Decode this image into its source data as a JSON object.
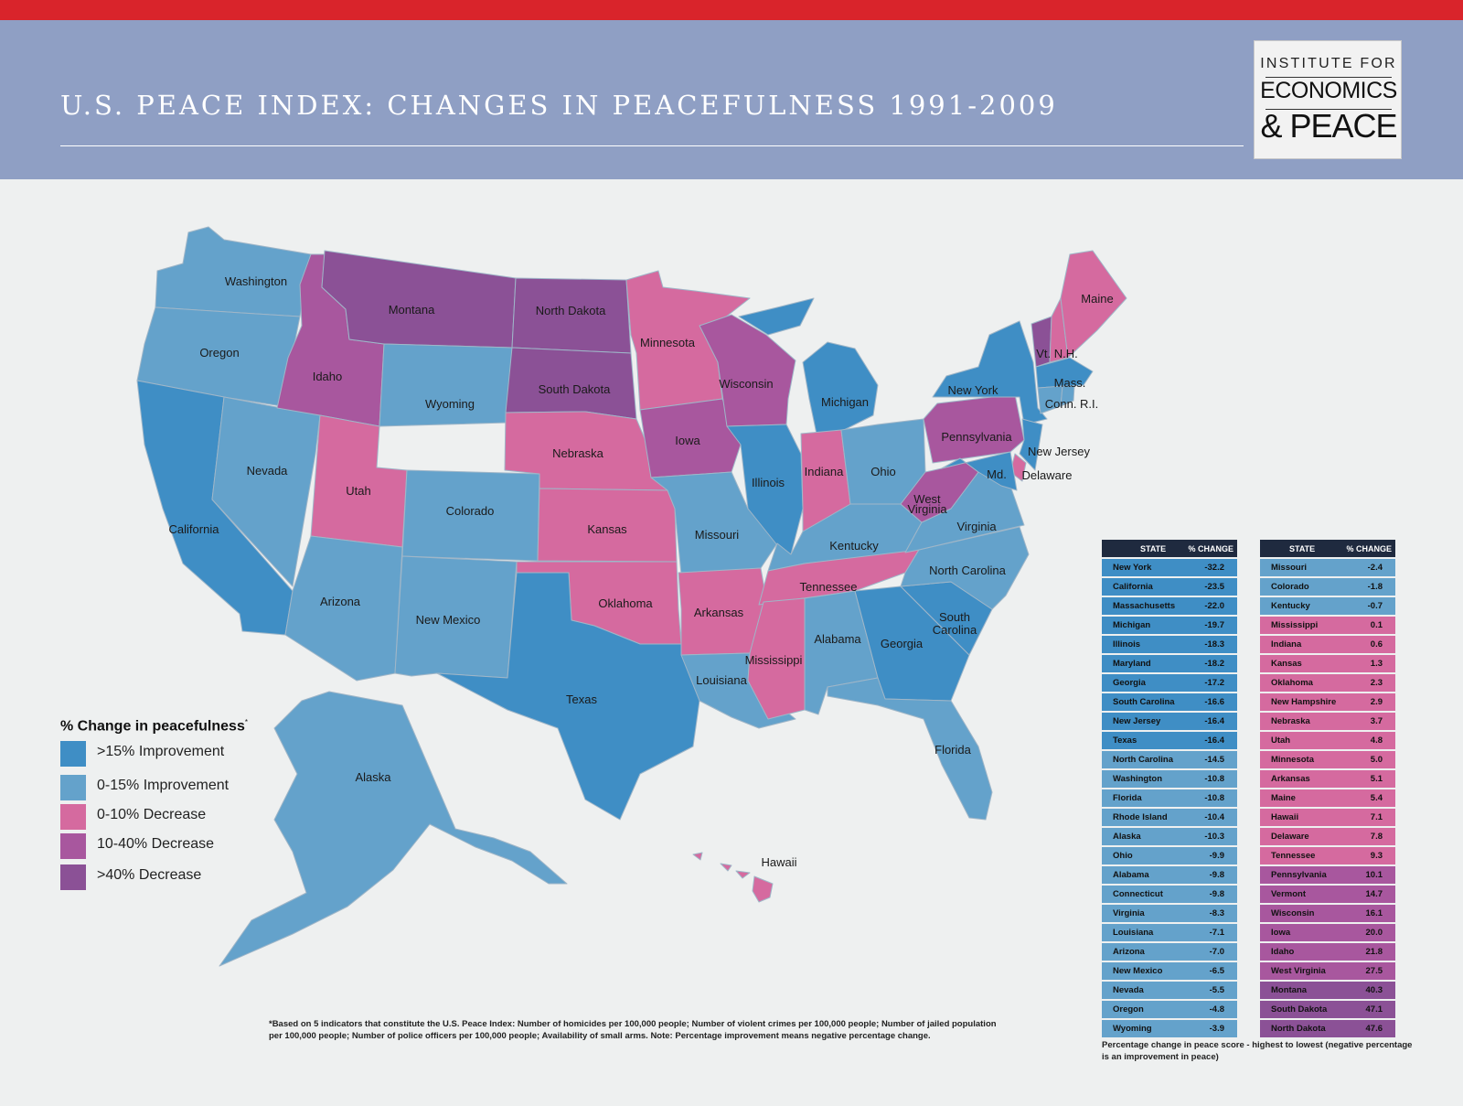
{
  "header": {
    "title": "U.S. PEACE INDEX: CHANGES IN PEACEFULNESS 1991-2009",
    "logo": {
      "line1": "INSTITUTE FOR",
      "line2": "ECONOMICS",
      "line3": "& PEACE"
    }
  },
  "colors": {
    "top_bar": "#d9242b",
    "header_bg": "#8f9fc4",
    "improve_gt15": "#3f8ec5",
    "improve_0_15": "#64a2cb",
    "decrease_0_10": "#d56a9f",
    "decrease_10_40": "#a8579e",
    "decrease_gt40": "#8b5196"
  },
  "map": {
    "labels": {
      "washington": "Washington",
      "oregon": "Oregon",
      "california": "California",
      "nevada": "Nevada",
      "idaho": "Idaho",
      "montana": "Montana",
      "wyoming": "Wyoming",
      "utah": "Utah",
      "arizona": "Arizona",
      "colorado": "Colorado",
      "new_mexico": "New Mexico",
      "north_dakota": "North Dakota",
      "south_dakota": "South Dakota",
      "nebraska": "Nebraska",
      "kansas": "Kansas",
      "oklahoma": "Oklahoma",
      "texas": "Texas",
      "minnesota": "Minnesota",
      "iowa": "Iowa",
      "missouri": "Missouri",
      "arkansas": "Arkansas",
      "louisiana": "Louisiana",
      "wisconsin": "Wisconsin",
      "illinois": "Illinois",
      "michigan": "Michigan",
      "indiana": "Indiana",
      "ohio": "Ohio",
      "kentucky": "Kentucky",
      "tennessee": "Tennessee",
      "mississippi": "Mississippi",
      "alabama": "Alabama",
      "georgia": "Georgia",
      "florida": "Florida",
      "south_carolina_1": "South",
      "south_carolina_2": "Carolina",
      "north_carolina": "North Carolina",
      "virginia": "Virginia",
      "west_virginia_1": "West",
      "west_virginia_2": "Virginia",
      "pennsylvania": "Pennsylvania",
      "new_york": "New York",
      "new_jersey": "New Jersey",
      "delaware": "Delaware",
      "maryland": "Md.",
      "vt_nh": "Vt. N.H.",
      "maine": "Maine",
      "mass": "Mass.",
      "conn_ri": "Conn. R.I.",
      "alaska": "Alaska",
      "hawaii": "Hawaii"
    }
  },
  "legend": {
    "title": "% Change in peacefulness",
    "title_mark": "*",
    "items": [
      {
        "label": ">15% Improvement",
        "color": "#3f8ec5"
      },
      {
        "label": "0-15% Improvement",
        "color": "#64a2cb"
      },
      {
        "label": "0-10% Decrease",
        "color": "#d56a9f"
      },
      {
        "label": "10-40% Decrease",
        "color": "#a8579e"
      },
      {
        "label": ">40% Decrease",
        "color": "#8b5196"
      }
    ]
  },
  "table": {
    "col_state": "STATE",
    "col_change": "% CHANGE",
    "left": [
      {
        "state": "New York",
        "change": "-32.2",
        "color": "#3f8ec5"
      },
      {
        "state": "California",
        "change": "-23.5",
        "color": "#3f8ec5"
      },
      {
        "state": "Massachusetts",
        "change": "-22.0",
        "color": "#3f8ec5"
      },
      {
        "state": "Michigan",
        "change": "-19.7",
        "color": "#3f8ec5"
      },
      {
        "state": "Illinois",
        "change": "-18.3",
        "color": "#3f8ec5"
      },
      {
        "state": "Maryland",
        "change": "-18.2",
        "color": "#3f8ec5"
      },
      {
        "state": "Georgia",
        "change": "-17.2",
        "color": "#3f8ec5"
      },
      {
        "state": "South Carolina",
        "change": "-16.6",
        "color": "#3f8ec5"
      },
      {
        "state": "New Jersey",
        "change": "-16.4",
        "color": "#3f8ec5"
      },
      {
        "state": "Texas",
        "change": "-16.4",
        "color": "#3f8ec5"
      },
      {
        "state": "North Carolina",
        "change": "-14.5",
        "color": "#64a2cb"
      },
      {
        "state": "Washington",
        "change": "-10.8",
        "color": "#64a2cb"
      },
      {
        "state": "Florida",
        "change": "-10.8",
        "color": "#64a2cb"
      },
      {
        "state": "Rhode Island",
        "change": "-10.4",
        "color": "#64a2cb"
      },
      {
        "state": "Alaska",
        "change": "-10.3",
        "color": "#64a2cb"
      },
      {
        "state": "Ohio",
        "change": "-9.9",
        "color": "#64a2cb"
      },
      {
        "state": "Alabama",
        "change": "-9.8",
        "color": "#64a2cb"
      },
      {
        "state": "Connecticut",
        "change": "-9.8",
        "color": "#64a2cb"
      },
      {
        "state": "Virginia",
        "change": "-8.3",
        "color": "#64a2cb"
      },
      {
        "state": "Louisiana",
        "change": "-7.1",
        "color": "#64a2cb"
      },
      {
        "state": "Arizona",
        "change": "-7.0",
        "color": "#64a2cb"
      },
      {
        "state": "New Mexico",
        "change": "-6.5",
        "color": "#64a2cb"
      },
      {
        "state": "Nevada",
        "change": "-5.5",
        "color": "#64a2cb"
      },
      {
        "state": "Oregon",
        "change": "-4.8",
        "color": "#64a2cb"
      },
      {
        "state": "Wyoming",
        "change": "-3.9",
        "color": "#64a2cb"
      }
    ],
    "right": [
      {
        "state": "Missouri",
        "change": "-2.4",
        "color": "#64a2cb"
      },
      {
        "state": "Colorado",
        "change": "-1.8",
        "color": "#64a2cb"
      },
      {
        "state": "Kentucky",
        "change": "-0.7",
        "color": "#64a2cb"
      },
      {
        "state": "Mississippi",
        "change": "0.1",
        "color": "#d56a9f"
      },
      {
        "state": "Indiana",
        "change": "0.6",
        "color": "#d56a9f"
      },
      {
        "state": "Kansas",
        "change": "1.3",
        "color": "#d56a9f"
      },
      {
        "state": "Oklahoma",
        "change": "2.3",
        "color": "#d56a9f"
      },
      {
        "state": "New Hampshire",
        "change": "2.9",
        "color": "#d56a9f"
      },
      {
        "state": "Nebraska",
        "change": "3.7",
        "color": "#d56a9f"
      },
      {
        "state": "Utah",
        "change": "4.8",
        "color": "#d56a9f"
      },
      {
        "state": "Minnesota",
        "change": "5.0",
        "color": "#d56a9f"
      },
      {
        "state": "Arkansas",
        "change": "5.1",
        "color": "#d56a9f"
      },
      {
        "state": "Maine",
        "change": "5.4",
        "color": "#d56a9f"
      },
      {
        "state": "Hawaii",
        "change": "7.1",
        "color": "#d56a9f"
      },
      {
        "state": "Delaware",
        "change": "7.8",
        "color": "#d56a9f"
      },
      {
        "state": "Tennessee",
        "change": "9.3",
        "color": "#d56a9f"
      },
      {
        "state": "Pennsylvania",
        "change": "10.1",
        "color": "#a8579e"
      },
      {
        "state": "Vermont",
        "change": "14.7",
        "color": "#a8579e"
      },
      {
        "state": "Wisconsin",
        "change": "16.1",
        "color": "#a8579e"
      },
      {
        "state": "Iowa",
        "change": "20.0",
        "color": "#a8579e"
      },
      {
        "state": "Idaho",
        "change": "21.8",
        "color": "#a8579e"
      },
      {
        "state": "West Virginia",
        "change": "27.5",
        "color": "#a8579e"
      },
      {
        "state": "Montana",
        "change": "40.3",
        "color": "#8b5196"
      },
      {
        "state": "South Dakota",
        "change": "47.1",
        "color": "#8b5196"
      },
      {
        "state": "North Dakota",
        "change": "47.6",
        "color": "#8b5196"
      }
    ],
    "caption": "Percentage change in peace score - highest to lowest (negative percentage is an improvement in peace)"
  },
  "footnote": "*Based on 5 indicators that constitute the U.S. Peace Index: Number of homicides per 100,000 people; Number of violent crimes per 100,000 people; Number of jailed population per 100,000 people; Number of police officers per 100,000 people; Availability of small arms. Note: Percentage improvement means negative percentage change."
}
